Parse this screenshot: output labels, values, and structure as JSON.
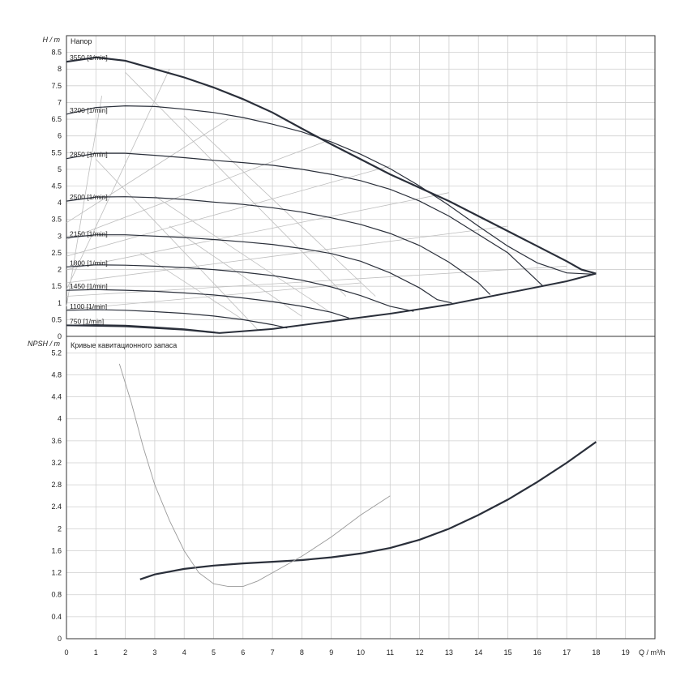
{
  "chart_data": [
    {
      "type": "line",
      "title": "Напор",
      "ylabel": "H / m",
      "xlim": [
        0,
        20
      ],
      "ylim": [
        0,
        9
      ],
      "yticks": [
        0,
        0.5,
        1,
        1.5,
        2,
        2.5,
        3,
        3.5,
        4,
        4.5,
        5,
        5.5,
        6,
        6.5,
        7,
        7.5,
        8,
        8.5
      ],
      "grid": true,
      "speed_curves": [
        {
          "label": "3550 [1/min]",
          "points": [
            [
              0,
              8.22
            ],
            [
              1,
              8.35
            ],
            [
              2,
              8.25
            ],
            [
              3,
              8.0
            ],
            [
              4,
              7.75
            ],
            [
              5,
              7.45
            ],
            [
              6,
              7.1
            ],
            [
              7,
              6.7
            ],
            [
              8,
              6.22
            ],
            [
              9,
              5.75
            ],
            [
              10,
              5.3
            ],
            [
              11,
              4.85
            ],
            [
              12,
              4.45
            ],
            [
              13,
              4.05
            ],
            [
              14,
              3.6
            ],
            [
              15,
              3.15
            ],
            [
              16,
              2.7
            ],
            [
              17,
              2.25
            ],
            [
              17.5,
              2.0
            ],
            [
              18,
              1.88
            ]
          ]
        },
        {
          "label": "3200 [1/min]",
          "points": [
            [
              0,
              6.65
            ],
            [
              1,
              6.85
            ],
            [
              2,
              6.9
            ],
            [
              3,
              6.88
            ],
            [
              4,
              6.8
            ],
            [
              5,
              6.7
            ],
            [
              6,
              6.55
            ],
            [
              7,
              6.35
            ],
            [
              8,
              6.12
            ],
            [
              9,
              5.82
            ],
            [
              10,
              5.45
            ],
            [
              11,
              5.02
            ],
            [
              12,
              4.5
            ],
            [
              13,
              3.92
            ],
            [
              14,
              3.3
            ],
            [
              15,
              2.7
            ],
            [
              16,
              2.2
            ],
            [
              17,
              1.9
            ],
            [
              17.9,
              1.86
            ]
          ]
        },
        {
          "label": "2850 [1/min]",
          "points": [
            [
              0,
              5.32
            ],
            [
              1,
              5.48
            ],
            [
              2,
              5.48
            ],
            [
              3,
              5.42
            ],
            [
              4,
              5.35
            ],
            [
              5,
              5.27
            ],
            [
              6,
              5.2
            ],
            [
              7,
              5.12
            ],
            [
              8,
              5.0
            ],
            [
              9,
              4.85
            ],
            [
              10,
              4.66
            ],
            [
              11,
              4.4
            ],
            [
              12,
              4.05
            ],
            [
              13,
              3.6
            ],
            [
              14,
              3.05
            ],
            [
              15,
              2.5
            ],
            [
              16.2,
              1.5
            ]
          ]
        },
        {
          "label": "2500 [1/min]",
          "points": [
            [
              0,
              4.05
            ],
            [
              1,
              4.17
            ],
            [
              2,
              4.18
            ],
            [
              3,
              4.15
            ],
            [
              4,
              4.1
            ],
            [
              5,
              4.02
            ],
            [
              6,
              3.95
            ],
            [
              7,
              3.85
            ],
            [
              8,
              3.72
            ],
            [
              9,
              3.55
            ],
            [
              10,
              3.35
            ],
            [
              11,
              3.08
            ],
            [
              12,
              2.72
            ],
            [
              13,
              2.22
            ],
            [
              14,
              1.6
            ],
            [
              14.4,
              1.25
            ]
          ]
        },
        {
          "label": "2150 [1/min]",
          "points": [
            [
              0,
              2.95
            ],
            [
              1,
              3.04
            ],
            [
              2,
              3.04
            ],
            [
              3,
              3.0
            ],
            [
              4,
              2.96
            ],
            [
              5,
              2.9
            ],
            [
              6,
              2.83
            ],
            [
              7,
              2.75
            ],
            [
              8,
              2.63
            ],
            [
              9,
              2.48
            ],
            [
              10,
              2.25
            ],
            [
              11,
              1.9
            ],
            [
              12,
              1.45
            ],
            [
              12.6,
              1.1
            ],
            [
              13.1,
              1.0
            ]
          ]
        },
        {
          "label": "1800 [1/min]",
          "points": [
            [
              0,
              2.08
            ],
            [
              1,
              2.14
            ],
            [
              2,
              2.13
            ],
            [
              3,
              2.1
            ],
            [
              4,
              2.06
            ],
            [
              5,
              2.0
            ],
            [
              6,
              1.92
            ],
            [
              7,
              1.82
            ],
            [
              8,
              1.68
            ],
            [
              9,
              1.48
            ],
            [
              10,
              1.22
            ],
            [
              11,
              0.9
            ],
            [
              11.8,
              0.75
            ]
          ]
        },
        {
          "label": "1450 [1/min]",
          "points": [
            [
              0,
              1.38
            ],
            [
              1,
              1.4
            ],
            [
              2,
              1.38
            ],
            [
              3,
              1.35
            ],
            [
              4,
              1.3
            ],
            [
              5,
              1.24
            ],
            [
              6,
              1.15
            ],
            [
              7,
              1.04
            ],
            [
              8,
              0.9
            ],
            [
              9,
              0.72
            ],
            [
              9.6,
              0.55
            ]
          ]
        },
        {
          "label": "1100 [1/min]",
          "points": [
            [
              0,
              0.78
            ],
            [
              1,
              0.8
            ],
            [
              2,
              0.78
            ],
            [
              3,
              0.74
            ],
            [
              4,
              0.69
            ],
            [
              5,
              0.61
            ],
            [
              6,
              0.5
            ],
            [
              7,
              0.35
            ],
            [
              7.5,
              0.25
            ]
          ]
        },
        {
          "label": "750 [1/min]",
          "points": [
            [
              0,
              0.33
            ],
            [
              1,
              0.35
            ],
            [
              2,
              0.33
            ],
            [
              3,
              0.28
            ],
            [
              4,
              0.22
            ],
            [
              5,
              0.13
            ],
            [
              5.2,
              0.1
            ]
          ]
        }
      ],
      "envelope_bottom": [
        [
          0,
          0.33
        ],
        [
          2,
          0.3
        ],
        [
          4,
          0.2
        ],
        [
          5.2,
          0.1
        ],
        [
          7,
          0.22
        ],
        [
          9,
          0.45
        ],
        [
          11,
          0.68
        ],
        [
          13,
          0.95
        ],
        [
          15,
          1.3
        ],
        [
          17,
          1.65
        ],
        [
          18,
          1.88
        ]
      ]
    },
    {
      "type": "line",
      "title": "Кривые кавитационного запаса",
      "ylabel": "NPSH / m",
      "xlabel": "Q / m³/h",
      "xlim": [
        0,
        20
      ],
      "ylim": [
        0,
        5.5
      ],
      "xticks": [
        0,
        1,
        2,
        3,
        4,
        5,
        6,
        7,
        8,
        9,
        10,
        11,
        12,
        13,
        14,
        15,
        16,
        17,
        18,
        19
      ],
      "yticks": [
        0,
        0.4,
        0.8,
        1.2,
        1.6,
        2,
        2.4,
        2.8,
        3.2,
        3.6,
        4,
        4.4,
        4.8,
        5.2
      ],
      "grid": true,
      "series": [
        {
          "points": [
            [
              2.5,
              1.08
            ],
            [
              3,
              1.17
            ],
            [
              4,
              1.27
            ],
            [
              5,
              1.33
            ],
            [
              6,
              1.37
            ],
            [
              7,
              1.4
            ],
            [
              8,
              1.43
            ],
            [
              9,
              1.48
            ],
            [
              10,
              1.55
            ],
            [
              11,
              1.65
            ],
            [
              12,
              1.8
            ],
            [
              13,
              2.0
            ],
            [
              14,
              2.25
            ],
            [
              15,
              2.53
            ],
            [
              16,
              2.85
            ],
            [
              17,
              3.2
            ],
            [
              18,
              3.58
            ]
          ]
        },
        {
          "points": [
            [
              1.8,
              5.0
            ],
            [
              2.2,
              4.3
            ],
            [
              2.6,
              3.5
            ],
            [
              3.0,
              2.8
            ],
            [
              3.5,
              2.15
            ],
            [
              4.0,
              1.6
            ],
            [
              4.5,
              1.2
            ],
            [
              5.0,
              1.0
            ],
            [
              5.5,
              0.95
            ],
            [
              6.0,
              0.95
            ],
            [
              6.5,
              1.05
            ],
            [
              7.0,
              1.2
            ],
            [
              8.0,
              1.5
            ],
            [
              9.0,
              1.85
            ],
            [
              10.0,
              2.25
            ],
            [
              11.0,
              2.6
            ]
          ]
        }
      ]
    }
  ]
}
